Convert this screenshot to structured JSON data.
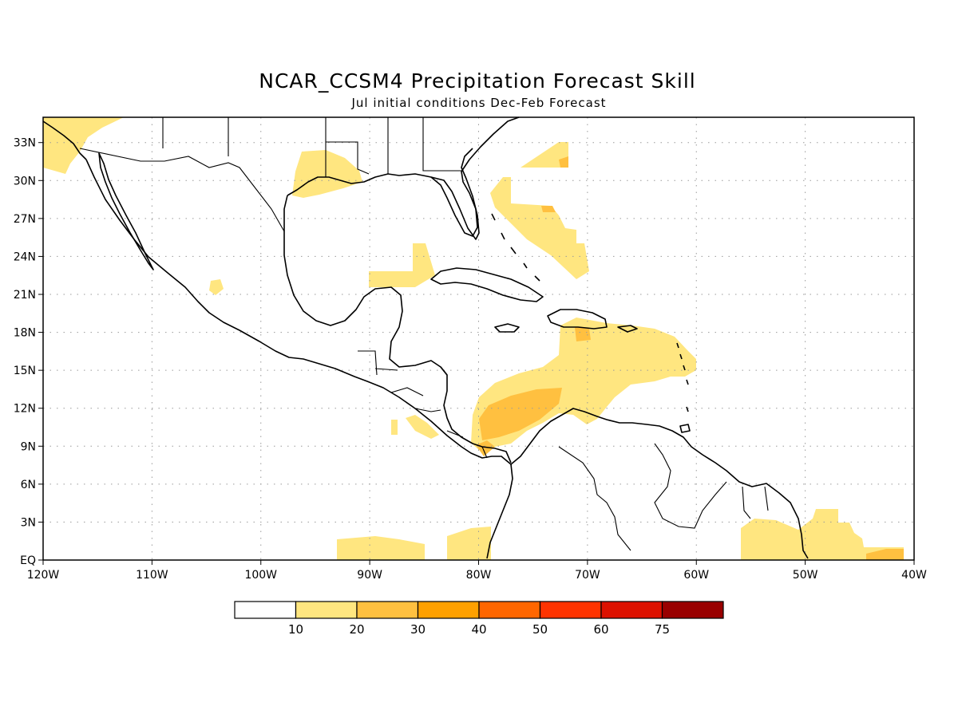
{
  "title": "NCAR_CCSM4 Precipitation Forecast Skill",
  "subtitle": "Jul initial conditions  Dec-Feb Forecast",
  "chart_data": {
    "type": "heatmap",
    "variable": "Precipitation forecast skill",
    "domain": {
      "lon_range": [
        -120,
        -40
      ],
      "lat_range": [
        0,
        35
      ]
    },
    "grid_lines": true,
    "x_ticks": [
      "120W",
      "110W",
      "100W",
      "90W",
      "80W",
      "70W",
      "60W",
      "50W",
      "40W"
    ],
    "y_ticks": [
      "EQ",
      "3N",
      "6N",
      "9N",
      "12N",
      "15N",
      "18N",
      "21N",
      "24N",
      "27N",
      "30N",
      "33N"
    ],
    "colorbar": {
      "tick_labels": [
        "10",
        "20",
        "30",
        "40",
        "50",
        "60",
        "75"
      ],
      "colors": [
        "#ffffff",
        "#ffe680",
        "#ffc040",
        "#ffa000",
        "#ff6600",
        "#ff3300",
        "#dd1100",
        "#990000"
      ]
    },
    "regions": [
      {
        "area": "Texas / Louisiana Gulf coast",
        "skill_class": "10-20"
      },
      {
        "area": "Northwest Mexico / Arizona",
        "skill_class": "10-20"
      },
      {
        "area": "Western Atlantic east of Florida",
        "skill_class": "10-20"
      },
      {
        "area": "Central Caribbean Sea",
        "skill_class": "20-30"
      },
      {
        "area": "Eastern Caribbean / Lesser Antilles",
        "skill_class": "10-20"
      },
      {
        "area": "Eastern Pacific near equator",
        "skill_class": "10-20"
      },
      {
        "area": "Guianas / Equatorial Atlantic",
        "skill_class": "10-20"
      },
      {
        "area": "Equatorial Atlantic near 40W",
        "skill_class": "20-30"
      }
    ]
  }
}
